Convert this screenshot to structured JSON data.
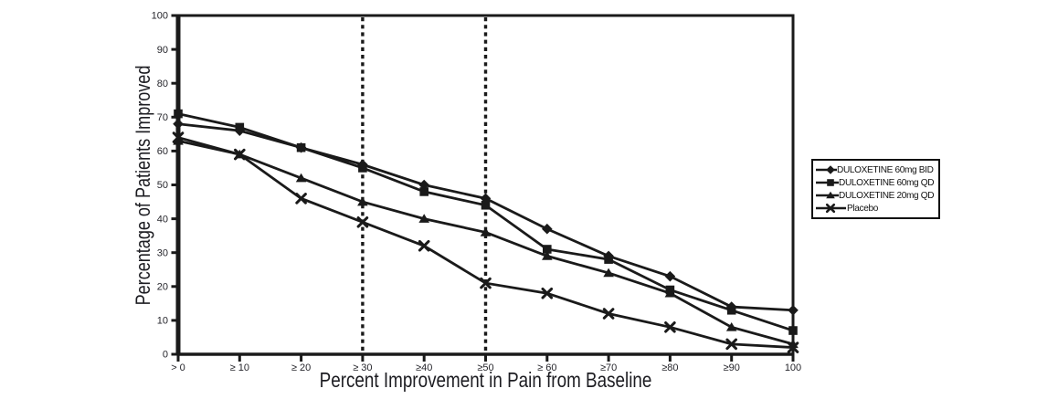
{
  "colors": {
    "line": "#1a1a1a",
    "tick_text": "#26262c",
    "axis_title_text": "#1d1d22",
    "background": "#ffffff"
  },
  "chart_data": {
    "type": "line",
    "title": "",
    "xlabel": "Percent Improvement in Pain from Baseline",
    "ylabel": "Percentage of Patients Improved",
    "categories": [
      "> 0",
      "≥ 10",
      "≥ 20",
      "≥ 30",
      "≥40",
      "≥50",
      "≥ 60",
      "≥70",
      "≥80",
      "≥90",
      "100"
    ],
    "y_ticks": [
      0,
      10,
      20,
      30,
      40,
      50,
      60,
      70,
      80,
      90,
      100
    ],
    "ylim": [
      0,
      100
    ],
    "grid": false,
    "legend_position": "outside-right",
    "reference_line_category_indices": [
      3,
      5
    ],
    "reference_line_style": "vertical-dashed",
    "series": [
      {
        "name": "DULOXETINE 60mg BID",
        "marker": "diamond",
        "color": "#1a1a1a",
        "values": [
          68,
          66,
          61,
          56,
          50,
          46,
          37,
          29,
          23,
          14,
          13
        ]
      },
      {
        "name": "DULOXETINE 60mg QD",
        "marker": "square",
        "color": "#1a1a1a",
        "values": [
          71,
          67,
          61,
          55,
          48,
          44,
          31,
          28,
          19,
          13,
          7
        ]
      },
      {
        "name": "DULOXETINE 20mg QD",
        "marker": "triangle",
        "color": "#1a1a1a",
        "values": [
          63,
          59,
          52,
          45,
          40,
          36,
          29,
          24,
          18,
          8,
          3
        ]
      },
      {
        "name": "Placebo",
        "marker": "xmark",
        "color": "#1a1a1a",
        "values": [
          64,
          59,
          46,
          39,
          32,
          21,
          18,
          12,
          8,
          3,
          2
        ]
      }
    ]
  }
}
